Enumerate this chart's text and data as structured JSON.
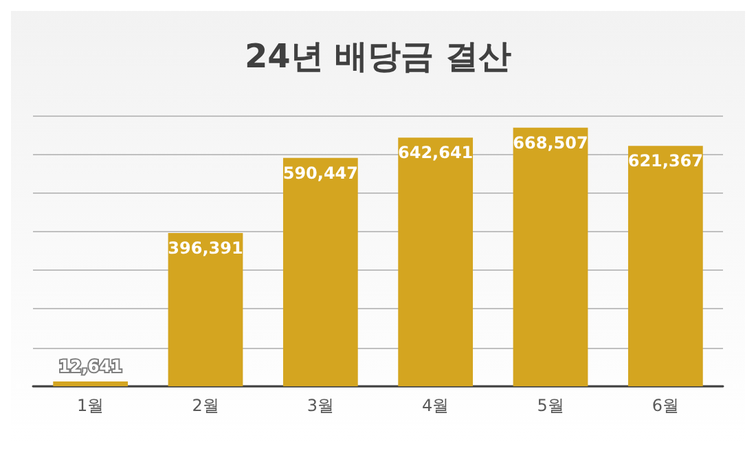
{
  "chart_data": {
    "type": "bar",
    "title": "24년 배당금 결산",
    "categories": [
      "1월",
      "2월",
      "3월",
      "4월",
      "5월",
      "6월"
    ],
    "values": [
      12641,
      396391,
      590447,
      642641,
      668507,
      621367
    ],
    "value_labels": [
      "12,641",
      "396,391",
      "590,447",
      "642,641",
      "668,507",
      "621,367"
    ],
    "color": "#d4a520",
    "ylim": [
      0,
      700000
    ],
    "yticks": [
      {
        "value": 0,
        "label": null
      },
      {
        "value": 100000,
        "label": null
      },
      {
        "value": 200000,
        "label": null
      },
      {
        "value": 300000,
        "label": null
      },
      {
        "value": 400000,
        "label": null
      },
      {
        "value": 500000,
        "label": null
      },
      {
        "value": 600000,
        "label": null
      },
      {
        "value": 700000,
        "label": null
      }
    ],
    "tick_labels": "x",
    "grid": "y"
  }
}
